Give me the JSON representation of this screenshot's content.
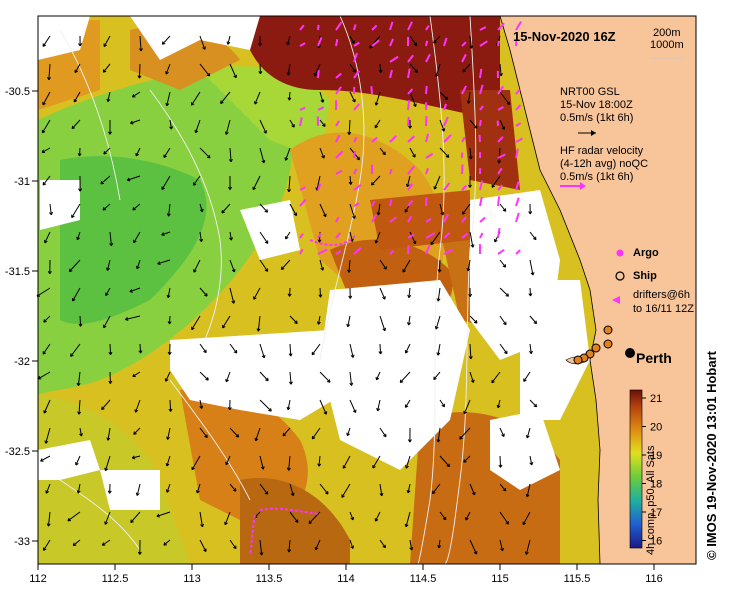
{
  "title": "15-Nov-2020 16Z",
  "depth_contours": [
    "200m",
    "1000m"
  ],
  "model_legend": {
    "name": "NRT00 GSL",
    "time": "15-Nov 18:00Z",
    "scale": "0.5m/s (1kt 6h)"
  },
  "radar_legend": {
    "line1": "HF radar velocity",
    "line2": "(4-12h avg) noQC",
    "scale": "0.5m/s (1kt 6h)"
  },
  "symbols": {
    "argo": "Argo",
    "ship": "Ship",
    "drifters_1": "drifters@6h",
    "drifters_2": "to 16/11 12Z"
  },
  "place": "Perth",
  "colorbar": {
    "label": "4h comp, p50, All Sats",
    "ticks": [
      "21",
      "20",
      "19",
      "18",
      "17",
      "16"
    ]
  },
  "credit": "© IMOS 19-Nov-2020 13:01 Hobart",
  "axes": {
    "x_ticks": [
      "112",
      "112.5",
      "113",
      "113.5",
      "114",
      "114.5",
      "115",
      "115.5",
      "116"
    ],
    "y_ticks": [
      "-30.5",
      "-31",
      "-31.5",
      "-32",
      "-32.5",
      "-33"
    ]
  },
  "colors": {
    "land": "#f8c49a",
    "cloud": "#ffffff",
    "warm": "#8b1a10",
    "mid": "#e8c020",
    "cool": "#7acc44",
    "arrow_radar": "#ff33ff"
  }
}
